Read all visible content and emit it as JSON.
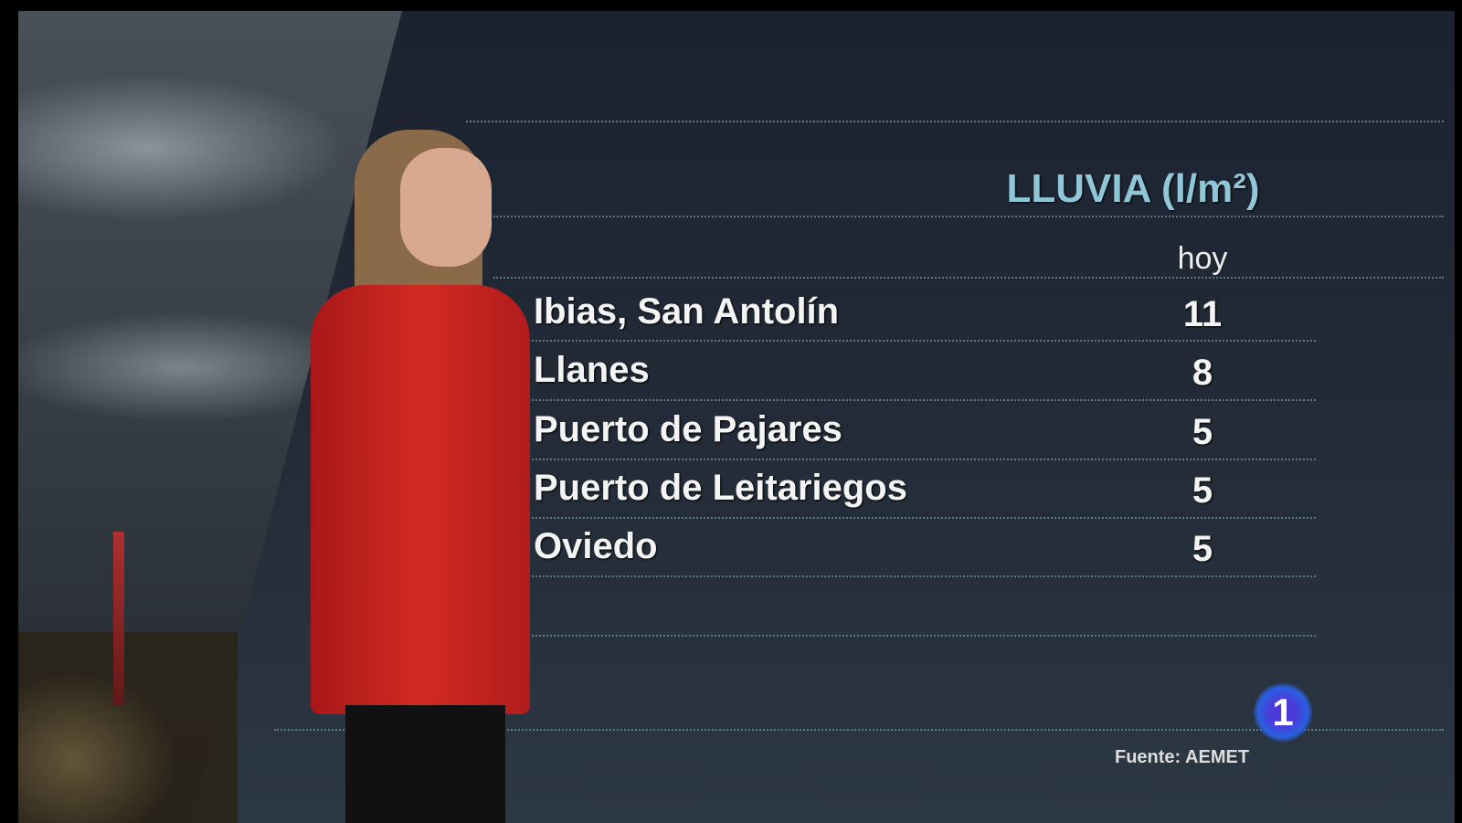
{
  "graphic": {
    "title": "LLUVIA (l/m²)",
    "column_header": "hoy",
    "rows": [
      {
        "name": "Ibias, San Antolín",
        "value": "11"
      },
      {
        "name": "Llanes",
        "value": "8"
      },
      {
        "name": "Puerto de Pajares",
        "value": "5"
      },
      {
        "name": "Puerto de Leitariegos",
        "value": "5"
      },
      {
        "name": "Oviedo",
        "value": "5"
      }
    ],
    "source": "Fuente: AEMET",
    "title_color": "#8fc6d8"
  },
  "channel_logo": {
    "text": "1",
    "icon": "tve-la1-logo"
  }
}
